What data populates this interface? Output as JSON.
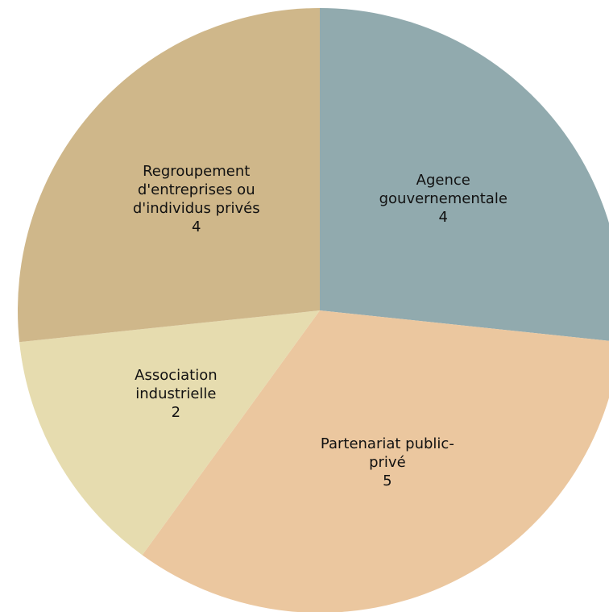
{
  "chart_data": {
    "type": "pie",
    "categories": [
      "Agence gouvernementale",
      "Partenariat public-privé",
      "Association industrielle",
      "Regroupement d'entreprises ou d'individus privés"
    ],
    "values": [
      4,
      5,
      2,
      4
    ],
    "colors": [
      "#91aaae",
      "#ebc79f",
      "#e6dcaf",
      "#cfb78a"
    ]
  }
}
